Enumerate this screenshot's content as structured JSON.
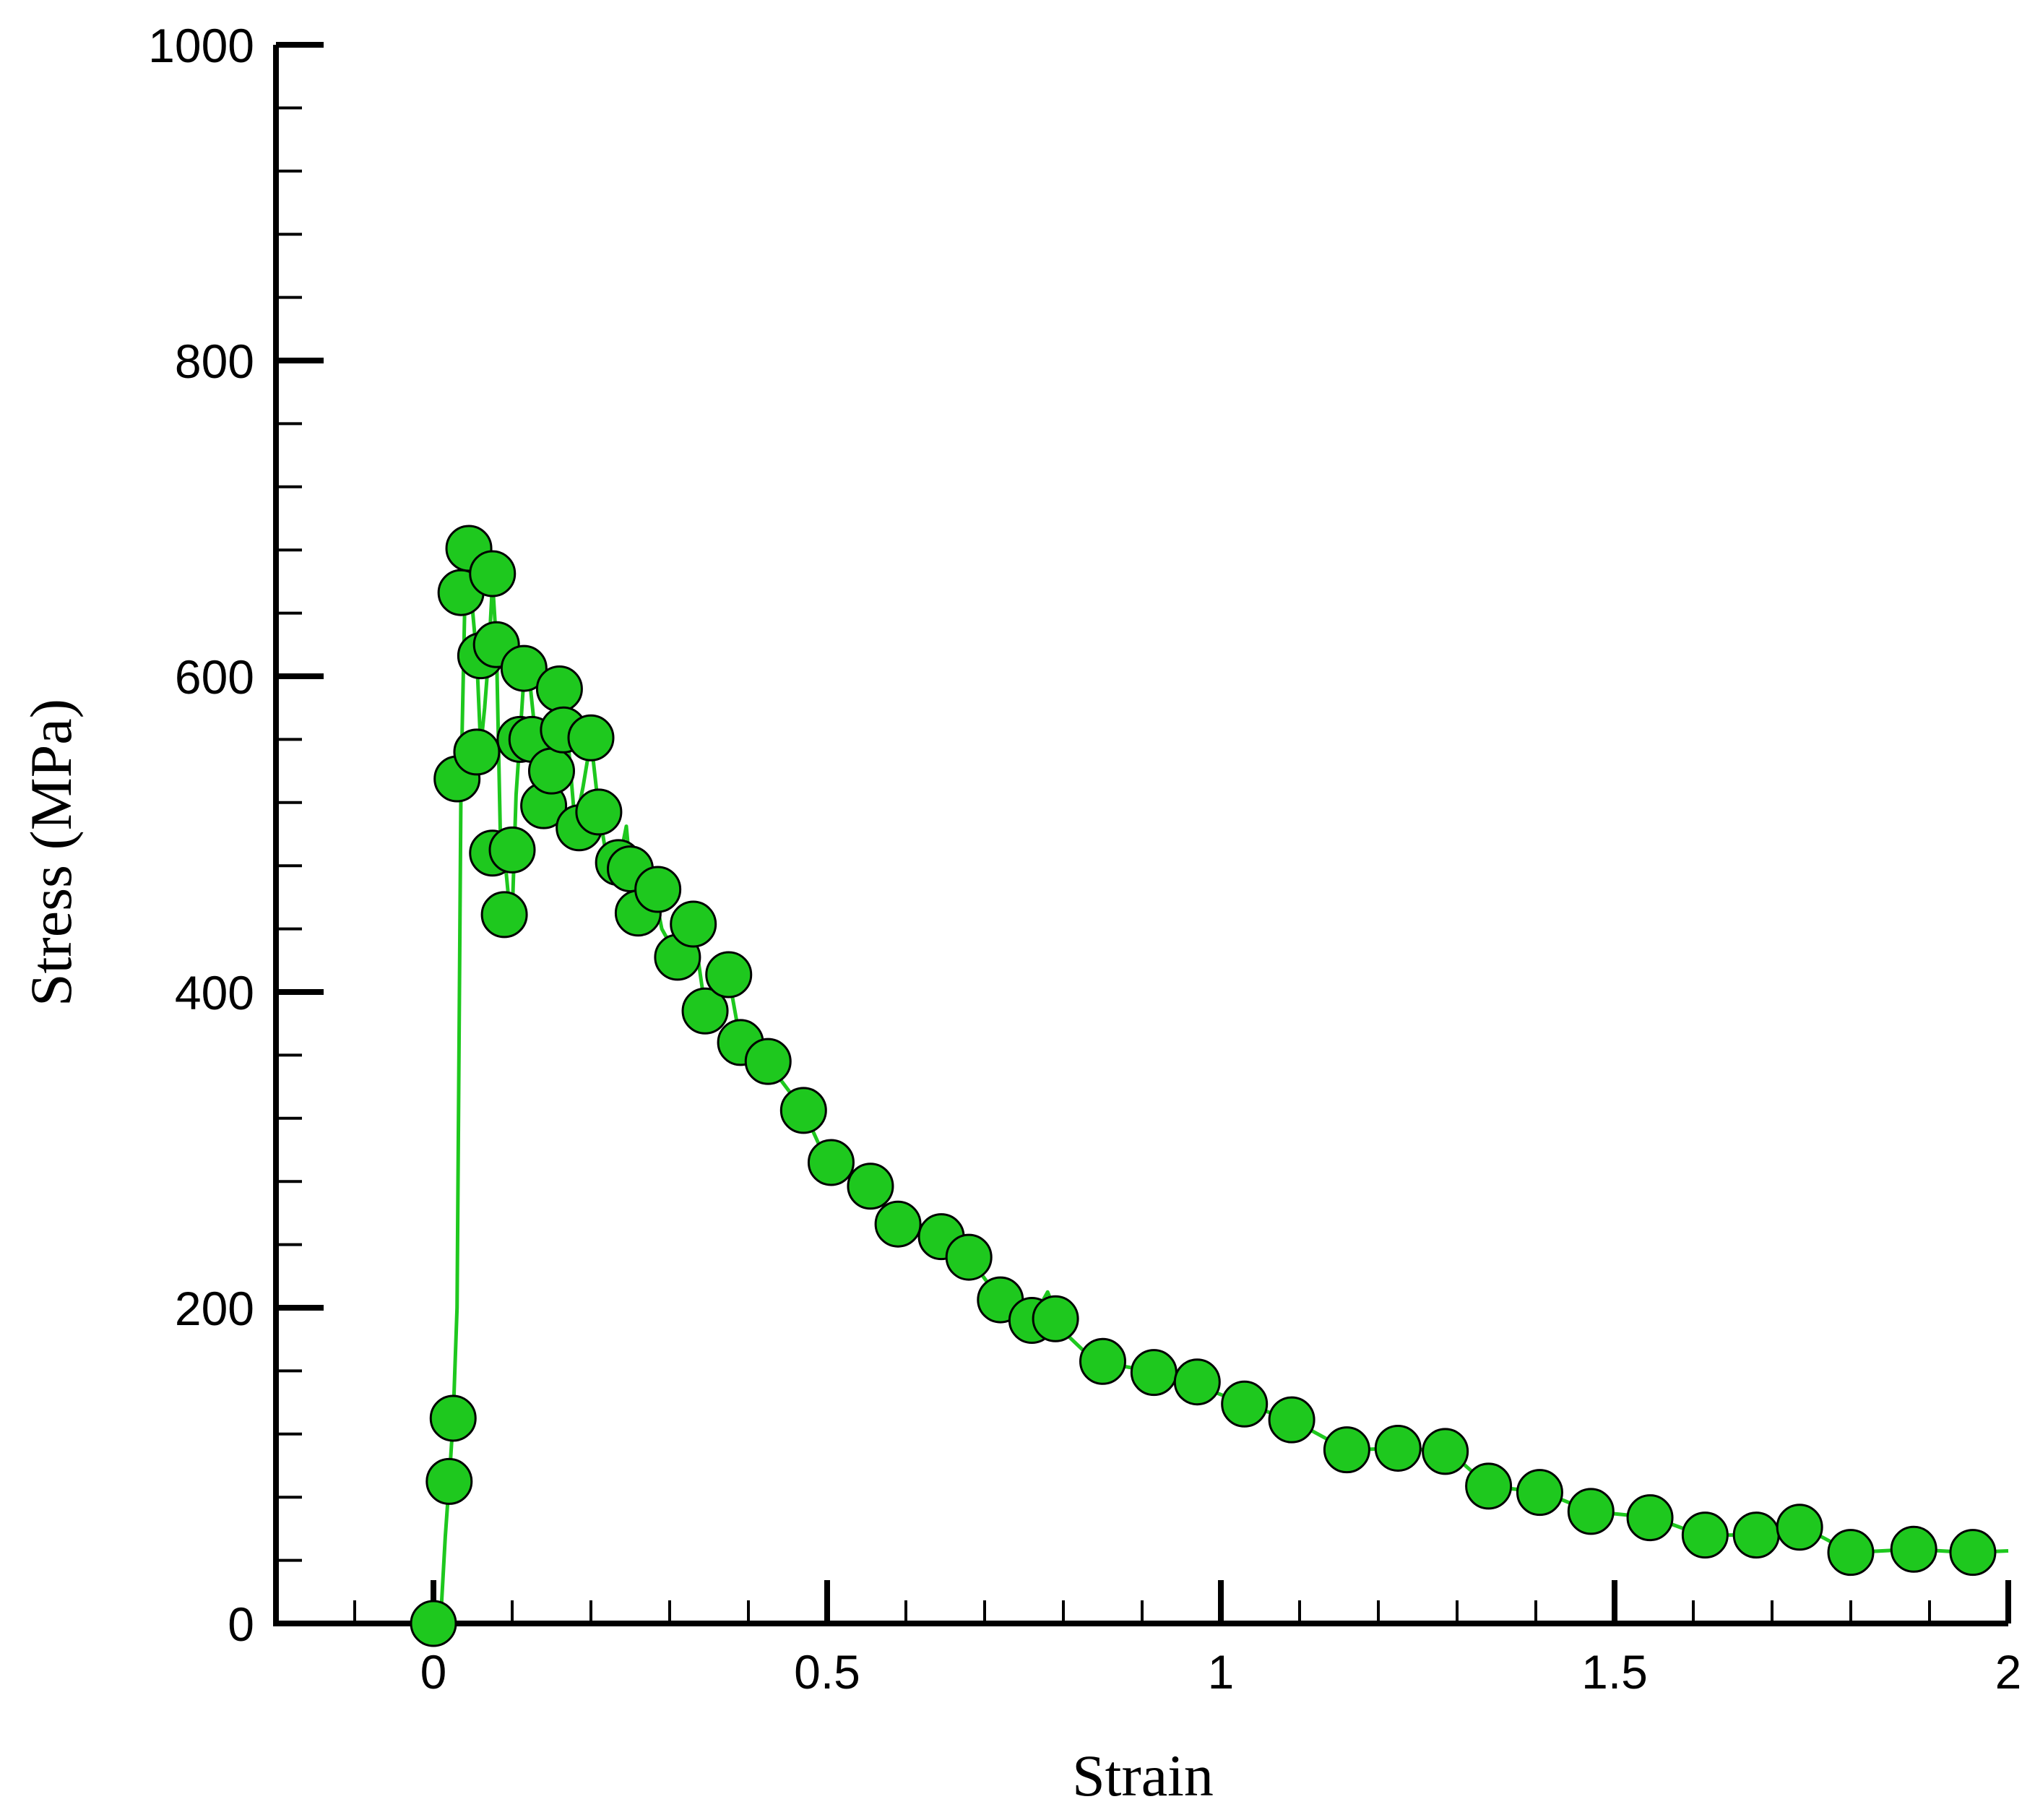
{
  "chart_data": {
    "type": "scatter",
    "xlabel": "Strain",
    "ylabel": "Stress (MPa)",
    "xlim": [
      -0.2,
      2.0
    ],
    "ylim": [
      0,
      1000
    ],
    "x_ticks": [
      {
        "value": 0,
        "label": "0"
      },
      {
        "value": 0.5,
        "label": "0.5"
      },
      {
        "value": 1,
        "label": "1"
      },
      {
        "value": 1.5,
        "label": "1.5"
      },
      {
        "value": 2,
        "label": "2"
      }
    ],
    "x_minor_step": 0.1,
    "y_ticks": [
      {
        "value": 0,
        "label": "0"
      },
      {
        "value": 200,
        "label": "200"
      },
      {
        "value": 400,
        "label": "400"
      },
      {
        "value": 600,
        "label": "600"
      },
      {
        "value": 800,
        "label": "800"
      },
      {
        "value": 1000,
        "label": "1000"
      }
    ],
    "y_minor_step": 40,
    "grid": false,
    "legend": "none",
    "colors": {
      "line": "#1ec81e",
      "marker_fill": "#1ec81e",
      "marker_edge": "#000000",
      "axis": "#000000"
    },
    "series": [
      {
        "line": [
          [
            0.0,
            0
          ],
          [
            0.01,
            10
          ],
          [
            0.015,
            55
          ],
          [
            0.02,
            90
          ],
          [
            0.025,
            130
          ],
          [
            0.03,
            200
          ],
          [
            0.035,
            530
          ],
          [
            0.04,
            650
          ],
          [
            0.045,
            690
          ],
          [
            0.05,
            640
          ],
          [
            0.055,
            612
          ],
          [
            0.06,
            555
          ],
          [
            0.065,
            580
          ],
          [
            0.07,
            612
          ],
          [
            0.075,
            660
          ],
          [
            0.08,
            620
          ],
          [
            0.085,
            500
          ],
          [
            0.09,
            488
          ],
          [
            0.095,
            462
          ],
          [
            0.1,
            448
          ],
          [
            0.105,
            525
          ],
          [
            0.11,
            562
          ],
          [
            0.115,
            600
          ],
          [
            0.12,
            608
          ],
          [
            0.13,
            560
          ],
          [
            0.14,
            520
          ],
          [
            0.15,
            545
          ],
          [
            0.16,
            590
          ],
          [
            0.17,
            565
          ],
          [
            0.18,
            505
          ],
          [
            0.19,
            530
          ],
          [
            0.2,
            560
          ],
          [
            0.21,
            515
          ],
          [
            0.22,
            485
          ],
          [
            0.235,
            480
          ],
          [
            0.245,
            505
          ],
          [
            0.255,
            450
          ],
          [
            0.265,
            468
          ],
          [
            0.28,
            465
          ],
          [
            0.29,
            440
          ],
          [
            0.31,
            422
          ],
          [
            0.33,
            442
          ],
          [
            0.345,
            390
          ],
          [
            0.36,
            415
          ],
          [
            0.375,
            410
          ],
          [
            0.39,
            368
          ],
          [
            0.41,
            360
          ],
          [
            0.43,
            356
          ],
          [
            0.44,
            345
          ],
          [
            0.47,
            325
          ],
          [
            0.5,
            292
          ],
          [
            0.55,
            277
          ],
          [
            0.59,
            254
          ],
          [
            0.64,
            245
          ],
          [
            0.68,
            232
          ],
          [
            0.72,
            205
          ],
          [
            0.76,
            192
          ],
          [
            0.78,
            210
          ],
          [
            0.8,
            185
          ],
          [
            0.84,
            166
          ],
          [
            0.91,
            160
          ],
          [
            0.96,
            153
          ],
          [
            1.03,
            139
          ],
          [
            1.09,
            129
          ],
          [
            1.16,
            110
          ],
          [
            1.23,
            111
          ],
          [
            1.29,
            109
          ],
          [
            1.34,
            87
          ],
          [
            1.41,
            83
          ],
          [
            1.47,
            71
          ],
          [
            1.55,
            67
          ],
          [
            1.61,
            56
          ],
          [
            1.68,
            56
          ],
          [
            1.74,
            61
          ],
          [
            1.8,
            45
          ],
          [
            1.88,
            47
          ],
          [
            1.95,
            45
          ],
          [
            2.0,
            46
          ]
        ],
        "markers": [
          [
            0.0,
            0
          ],
          [
            0.02,
            90
          ],
          [
            0.025,
            130
          ],
          [
            0.03,
            535
          ],
          [
            0.035,
            653
          ],
          [
            0.045,
            681
          ],
          [
            0.055,
            552
          ],
          [
            0.06,
            613
          ],
          [
            0.075,
            665
          ],
          [
            0.075,
            488
          ],
          [
            0.08,
            620
          ],
          [
            0.09,
            449
          ],
          [
            0.1,
            490
          ],
          [
            0.11,
            560
          ],
          [
            0.115,
            605
          ],
          [
            0.125,
            560
          ],
          [
            0.14,
            518
          ],
          [
            0.15,
            540
          ],
          [
            0.16,
            592
          ],
          [
            0.165,
            566
          ],
          [
            0.185,
            504
          ],
          [
            0.2,
            561
          ],
          [
            0.21,
            514
          ],
          [
            0.235,
            482
          ],
          [
            0.25,
            478
          ],
          [
            0.26,
            450
          ],
          [
            0.285,
            465
          ],
          [
            0.31,
            422
          ],
          [
            0.33,
            443
          ],
          [
            0.345,
            388
          ],
          [
            0.375,
            411
          ],
          [
            0.39,
            368
          ],
          [
            0.425,
            356
          ],
          [
            0.47,
            325
          ],
          [
            0.505,
            292
          ],
          [
            0.555,
            277
          ],
          [
            0.59,
            253
          ],
          [
            0.645,
            245
          ],
          [
            0.68,
            232
          ],
          [
            0.72,
            205
          ],
          [
            0.76,
            192
          ],
          [
            0.79,
            193
          ],
          [
            0.85,
            166
          ],
          [
            0.915,
            159
          ],
          [
            0.97,
            153
          ],
          [
            1.03,
            139
          ],
          [
            1.09,
            129
          ],
          [
            1.16,
            110
          ],
          [
            1.225,
            111
          ],
          [
            1.285,
            109
          ],
          [
            1.34,
            87
          ],
          [
            1.405,
            83
          ],
          [
            1.47,
            71
          ],
          [
            1.545,
            67
          ],
          [
            1.615,
            56
          ],
          [
            1.68,
            56
          ],
          [
            1.735,
            61
          ],
          [
            1.8,
            45
          ],
          [
            1.88,
            47
          ],
          [
            1.955,
            45
          ]
        ]
      }
    ]
  }
}
